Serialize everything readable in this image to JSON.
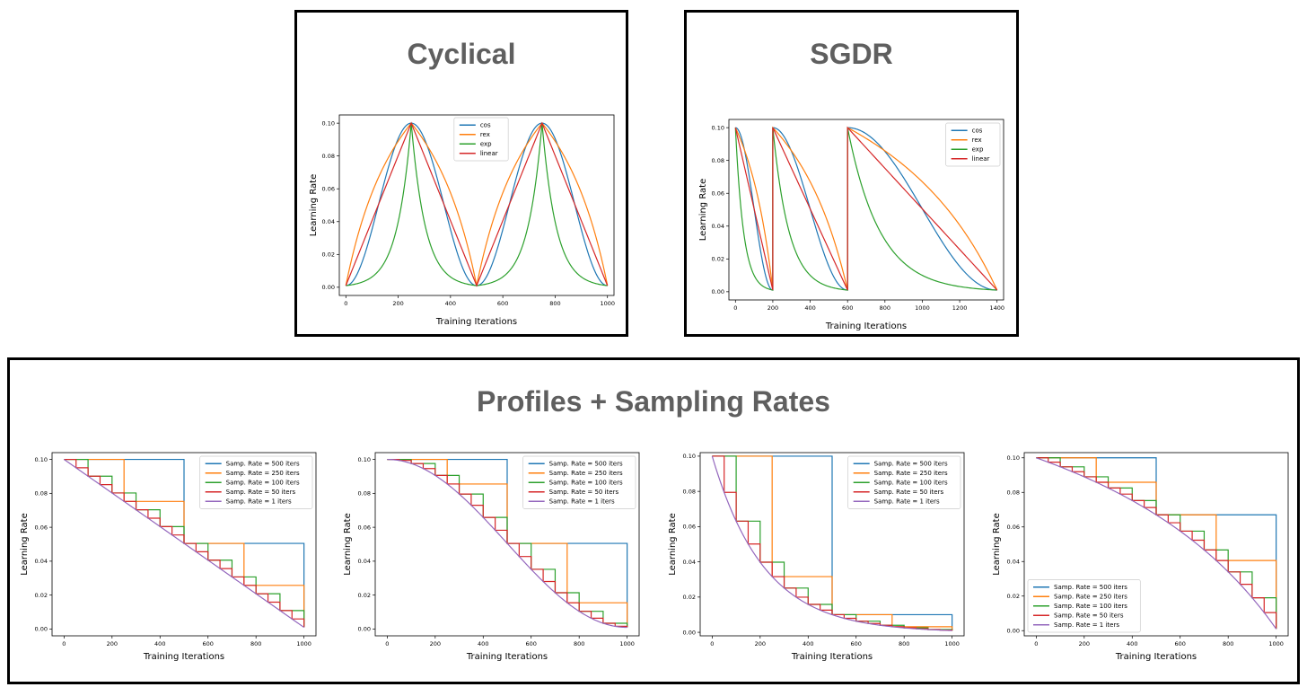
{
  "colors": {
    "tab_blue": "#1f77b4",
    "tab_orange": "#ff7f0e",
    "tab_green": "#2ca02c",
    "tab_red": "#d62728",
    "tab_purple": "#9467bd",
    "title_gray": "#5f5f5f"
  },
  "panels": {
    "cyclical": {
      "title": "Cyclical"
    },
    "sgdr": {
      "title": "SGDR"
    },
    "profiles": {
      "title": "Profiles + Sampling Rates"
    }
  },
  "chart_data": [
    {
      "id": "cyclical",
      "type": "line",
      "xlabel": "Training Iterations",
      "ylabel": "Learning Rate",
      "xlim": [
        -25,
        1025
      ],
      "ylim": [
        -0.005,
        0.105
      ],
      "xticks": [
        0,
        200,
        400,
        600,
        800,
        1000
      ],
      "yticks": [
        0.0,
        0.02,
        0.04,
        0.06,
        0.08,
        0.1
      ],
      "legend": "top-center",
      "series": [
        {
          "name": "cos",
          "color": "#1f77b4",
          "profile": "cos",
          "cycles": [
            [
              0,
              250,
              0.001,
              0.1
            ],
            [
              250,
              500,
              0.1,
              0.001
            ],
            [
              500,
              750,
              0.001,
              0.1
            ],
            [
              750,
              1000,
              0.1,
              0.001
            ]
          ]
        },
        {
          "name": "rex",
          "color": "#ff7f0e",
          "profile": "rex",
          "cycles": [
            [
              0,
              250,
              0.001,
              0.1
            ],
            [
              250,
              500,
              0.1,
              0.001
            ],
            [
              500,
              750,
              0.001,
              0.1
            ],
            [
              750,
              1000,
              0.1,
              0.001
            ]
          ]
        },
        {
          "name": "exp",
          "color": "#2ca02c",
          "profile": "exp",
          "cycles": [
            [
              0,
              250,
              0.001,
              0.1
            ],
            [
              250,
              500,
              0.1,
              0.001
            ],
            [
              500,
              750,
              0.001,
              0.1
            ],
            [
              750,
              1000,
              0.1,
              0.001
            ]
          ]
        },
        {
          "name": "linear",
          "color": "#d62728",
          "profile": "linear",
          "cycles": [
            [
              0,
              250,
              0.001,
              0.1
            ],
            [
              250,
              500,
              0.1,
              0.001
            ],
            [
              500,
              750,
              0.001,
              0.1
            ],
            [
              750,
              1000,
              0.1,
              0.001
            ]
          ]
        }
      ]
    },
    {
      "id": "sgdr",
      "type": "line",
      "xlabel": "Training Iterations",
      "ylabel": "Learning Rate",
      "xlim": [
        -35,
        1435
      ],
      "ylim": [
        -0.005,
        0.105
      ],
      "xticks": [
        0,
        200,
        400,
        600,
        800,
        1000,
        1200,
        1400
      ],
      "yticks": [
        0.0,
        0.02,
        0.04,
        0.06,
        0.08,
        0.1
      ],
      "legend": "top-right",
      "series": [
        {
          "name": "cos",
          "color": "#1f77b4",
          "profile": "cos",
          "cycles": [
            [
              0,
              200,
              0.1,
              0.001
            ],
            [
              200,
              600,
              0.1,
              0.001
            ],
            [
              600,
              1400,
              0.1,
              0.001
            ]
          ]
        },
        {
          "name": "rex",
          "color": "#ff7f0e",
          "profile": "rex",
          "cycles": [
            [
              0,
              200,
              0.1,
              0.001
            ],
            [
              200,
              600,
              0.1,
              0.001
            ],
            [
              600,
              1400,
              0.1,
              0.001
            ]
          ]
        },
        {
          "name": "exp",
          "color": "#2ca02c",
          "profile": "exp",
          "cycles": [
            [
              0,
              200,
              0.1,
              0.001
            ],
            [
              200,
              600,
              0.1,
              0.001
            ],
            [
              600,
              1400,
              0.1,
              0.001
            ]
          ]
        },
        {
          "name": "linear",
          "color": "#d62728",
          "profile": "linear",
          "cycles": [
            [
              0,
              200,
              0.1,
              0.001
            ],
            [
              200,
              600,
              0.1,
              0.001
            ],
            [
              600,
              1400,
              0.1,
              0.001
            ]
          ]
        }
      ]
    },
    {
      "id": "profile-linear",
      "type": "line",
      "profile": "linear",
      "xlabel": "Training Iterations",
      "ylabel": "Learning Rate",
      "xlim": [
        -50,
        1050
      ],
      "ylim": [
        -0.004,
        0.104
      ],
      "xticks": [
        0,
        200,
        400,
        600,
        800,
        1000
      ],
      "yticks": [
        0.0,
        0.02,
        0.04,
        0.06,
        0.08,
        0.1
      ],
      "legend": "top-right",
      "series": [
        {
          "name": "Samp. Rate = 500 iters",
          "color": "#1f77b4",
          "step": 500
        },
        {
          "name": "Samp. Rate = 250 iters",
          "color": "#ff7f0e",
          "step": 250
        },
        {
          "name": "Samp. Rate = 100 iters",
          "color": "#2ca02c",
          "step": 100
        },
        {
          "name": "Samp. Rate = 50 iters",
          "color": "#d62728",
          "step": 50
        },
        {
          "name": "Samp. Rate = 1 iters",
          "color": "#9467bd",
          "step": 1
        }
      ]
    },
    {
      "id": "profile-cos",
      "type": "line",
      "profile": "cos",
      "xlabel": "Training Iterations",
      "ylabel": "Learning Rate",
      "xlim": [
        -50,
        1050
      ],
      "ylim": [
        -0.004,
        0.104
      ],
      "xticks": [
        0,
        200,
        400,
        600,
        800,
        1000
      ],
      "yticks": [
        0.0,
        0.02,
        0.04,
        0.06,
        0.08,
        0.1
      ],
      "legend": "top-right",
      "series": [
        {
          "name": "Samp. Rate = 500 iters",
          "color": "#1f77b4",
          "step": 500
        },
        {
          "name": "Samp. Rate = 250 iters",
          "color": "#ff7f0e",
          "step": 250
        },
        {
          "name": "Samp. Rate = 100 iters",
          "color": "#2ca02c",
          "step": 100
        },
        {
          "name": "Samp. Rate = 50 iters",
          "color": "#d62728",
          "step": 50
        },
        {
          "name": "Samp. Rate = 1 iters",
          "color": "#9467bd",
          "step": 1
        }
      ]
    },
    {
      "id": "profile-exp",
      "type": "line",
      "profile": "exp",
      "xlabel": "Training Iterations",
      "ylabel": "Learning Rate",
      "xlim": [
        -50,
        1050
      ],
      "ylim": [
        -0.002,
        0.102
      ],
      "xticks": [
        0,
        200,
        400,
        600,
        800,
        1000
      ],
      "yticks": [
        0.0,
        0.02,
        0.04,
        0.06,
        0.08,
        0.1
      ],
      "legend": "top-right",
      "series": [
        {
          "name": "Samp. Rate = 500 iters",
          "color": "#1f77b4",
          "step": 500
        },
        {
          "name": "Samp. Rate = 250 iters",
          "color": "#ff7f0e",
          "step": 250
        },
        {
          "name": "Samp. Rate = 100 iters",
          "color": "#2ca02c",
          "step": 100
        },
        {
          "name": "Samp. Rate = 50 iters",
          "color": "#d62728",
          "step": 50
        },
        {
          "name": "Samp. Rate = 1 iters",
          "color": "#9467bd",
          "step": 1
        }
      ]
    },
    {
      "id": "profile-rex",
      "type": "line",
      "profile": "rex",
      "xlabel": "Training Iterations",
      "ylabel": "Learning Rate",
      "xlim": [
        -50,
        1050
      ],
      "ylim": [
        -0.003,
        0.103
      ],
      "xticks": [
        0,
        200,
        400,
        600,
        800,
        1000
      ],
      "yticks": [
        0.0,
        0.02,
        0.04,
        0.06,
        0.08,
        0.1
      ],
      "legend": "bottom-left",
      "series": [
        {
          "name": "Samp. Rate = 500 iters",
          "color": "#1f77b4",
          "step": 500
        },
        {
          "name": "Samp. Rate = 250 iters",
          "color": "#ff7f0e",
          "step": 250
        },
        {
          "name": "Samp. Rate = 100 iters",
          "color": "#2ca02c",
          "step": 100
        },
        {
          "name": "Samp. Rate = 50 iters",
          "color": "#d62728",
          "step": 50
        },
        {
          "name": "Samp. Rate = 1 iters",
          "color": "#9467bd",
          "step": 1
        }
      ]
    }
  ]
}
